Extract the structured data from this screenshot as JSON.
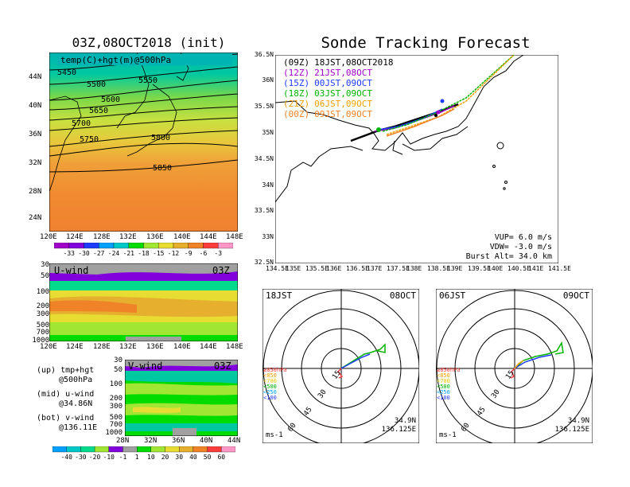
{
  "left_title": "03Z,08OCT2018 (init)",
  "main_title": "Sonde Tracking Forecast",
  "map500": {
    "label": "temp(C)+hgt(m)@500hPa",
    "contour_labels": [
      "5450",
      "5500",
      "5550",
      "5600",
      "5650",
      "5700",
      "5750",
      "5800",
      "5850"
    ],
    "lat_labels": [
      "44N",
      "40N",
      "36N",
      "32N",
      "28N",
      "24N"
    ],
    "lon_labels": [
      "120E",
      "124E",
      "128E",
      "132E",
      "136E",
      "140E",
      "144E",
      "148E"
    ]
  },
  "temp_colorbar": {
    "labels": [
      "-33",
      "-30",
      "-27",
      "-24",
      "-21",
      "-18",
      "-15",
      "-12",
      "-9",
      "-6",
      "-3"
    ],
    "colors": [
      "#a000c8",
      "#8200dc",
      "#1e3cff",
      "#00a0ff",
      "#00c8c8",
      "#00dc00",
      "#a0e632",
      "#e6dc32",
      "#e6af2d",
      "#f08228",
      "#fa3c3c",
      "#ff96c8"
    ]
  },
  "uwind": {
    "label": "U-wind",
    "time": "03Z",
    "pressure_labels": [
      "30",
      "50",
      "100",
      "200",
      "300",
      "500",
      "700",
      "1000"
    ],
    "lon_labels": [
      "120E",
      "124E",
      "128E",
      "132E",
      "136E",
      "140E",
      "144E",
      "148E"
    ]
  },
  "vwind": {
    "label": "V-wind",
    "time": "03Z",
    "pressure_labels": [
      "30",
      "50",
      "100",
      "200",
      "300",
      "500",
      "700",
      "1000"
    ],
    "lat_labels": [
      "28N",
      "32N",
      "36N",
      "40N",
      "44N"
    ]
  },
  "legend_notes": [
    {
      "line1": "(up) tmp+hgt",
      "line2": "@500hPa"
    },
    {
      "line1": "(mid) u-wind",
      "line2": "@34.86N"
    },
    {
      "line1": "(bot) v-wind",
      "line2": "@136.11E"
    }
  ],
  "wind_colorbar": {
    "labels": [
      "-40",
      "-30",
      "-20",
      "-10",
      "-1",
      "1",
      "10",
      "20",
      "30",
      "40",
      "50",
      "60"
    ],
    "colors": [
      "#00a0ff",
      "#00c8c8",
      "#00dc8c",
      "#a0e632",
      "#8200dc",
      "#a0a0a0",
      "#00dc00",
      "#a0e632",
      "#e6dc32",
      "#e6af2d",
      "#f08228",
      "#fa3c3c",
      "#ff96c8"
    ]
  },
  "track_map": {
    "lat_labels": [
      "36.5N",
      "36N",
      "35.5N",
      "35N",
      "34.5N",
      "34N",
      "33.5N",
      "33N",
      "32.5N"
    ],
    "lon_labels": [
      "134.5E",
      "135E",
      "135.5E",
      "136E",
      "136.5E",
      "137E",
      "137.5E",
      "138E",
      "138.5E",
      "139E",
      "139.5E",
      "140E",
      "140.5E",
      "141E",
      "141.5E"
    ],
    "launches": [
      {
        "code": "(09Z)",
        "time": "18JST,08OCT2018",
        "color": "#000000"
      },
      {
        "code": "(12Z)",
        "time": "21JST,08OCT",
        "color": "#a000c8"
      },
      {
        "code": "(15Z)",
        "time": "00JST,09OCT",
        "color": "#1e3cff"
      },
      {
        "code": "(18Z)",
        "time": "03JST,09OCT",
        "color": "#00b400"
      },
      {
        "code": "(21Z)",
        "time": "06JST,09OCT",
        "color": "#f0a000"
      },
      {
        "code": "(00Z)",
        "time": "09JST,09OCT",
        "color": "#f08228"
      }
    ],
    "params": [
      "VUP= 6.0 m/s",
      "VDW= -3.0 m/s",
      "Burst Alt= 34.0 km"
    ]
  },
  "hodographs": [
    {
      "time": "18JST",
      "date": "08OCT",
      "lat": "34.9N",
      "lon": "136.125E",
      "unit": "ms-1",
      "rings": [
        "15",
        "30",
        "45",
        "60"
      ]
    },
    {
      "time": "06JST",
      "date": "09OCT",
      "lat": "34.9N",
      "lon": "136.125E",
      "unit": "ms-1",
      "rings": [
        "15",
        "30",
        "45",
        "60"
      ]
    }
  ],
  "pressure_legend": [
    {
      "label": "≥850hPa",
      "color": "#fa3c3c"
    },
    {
      "label": "<850",
      "color": "#f0a000"
    },
    {
      "label": "<700",
      "color": "#e6c800"
    },
    {
      "label": "<500",
      "color": "#00b400"
    },
    {
      "label": "<250",
      "color": "#00a0ff"
    },
    {
      "label": "<100",
      "color": "#1e3cff"
    }
  ]
}
